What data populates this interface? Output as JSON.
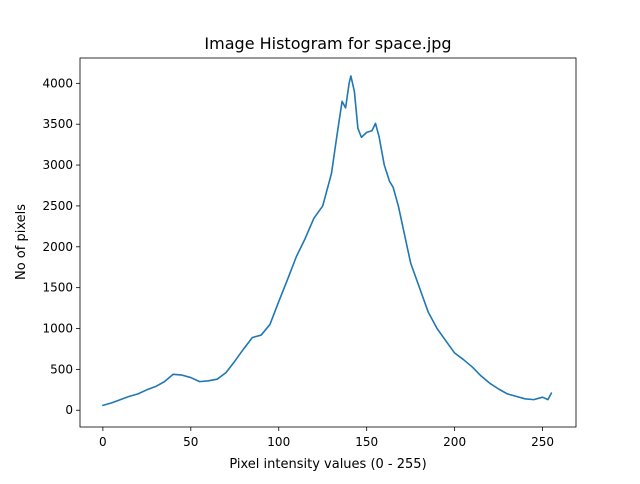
{
  "chart_data": {
    "type": "line",
    "title": "Image Histogram for space.jpg",
    "xlabel": "Pixel intensity values (0 - 255)",
    "ylabel": "No of pixels",
    "xlim": [
      -13,
      269
    ],
    "ylim": [
      -205,
      4310
    ],
    "xticks": [
      0,
      50,
      100,
      150,
      200,
      250
    ],
    "yticks": [
      0,
      500,
      1000,
      1500,
      2000,
      2500,
      3000,
      3500,
      4000
    ],
    "grid": false,
    "line_color": "#1f77b4",
    "x": [
      0,
      5,
      10,
      15,
      20,
      25,
      30,
      35,
      40,
      45,
      50,
      55,
      60,
      65,
      70,
      75,
      80,
      85,
      90,
      95,
      100,
      105,
      110,
      115,
      120,
      125,
      130,
      133,
      136,
      138,
      140,
      141,
      143,
      145,
      147,
      150,
      153,
      155,
      157,
      160,
      163,
      165,
      168,
      170,
      175,
      180,
      185,
      190,
      195,
      200,
      205,
      210,
      215,
      220,
      225,
      230,
      235,
      240,
      245,
      250,
      253,
      255
    ],
    "y": [
      60,
      90,
      130,
      170,
      200,
      250,
      290,
      350,
      440,
      430,
      400,
      350,
      360,
      380,
      460,
      600,
      750,
      890,
      920,
      1050,
      1330,
      1600,
      1880,
      2100,
      2350,
      2500,
      2900,
      3350,
      3780,
      3700,
      4000,
      4090,
      3900,
      3450,
      3340,
      3400,
      3420,
      3510,
      3350,
      3000,
      2800,
      2730,
      2500,
      2300,
      1800,
      1500,
      1200,
      1000,
      850,
      700,
      620,
      530,
      420,
      330,
      260,
      200,
      170,
      140,
      130,
      160,
      130,
      210
    ]
  }
}
